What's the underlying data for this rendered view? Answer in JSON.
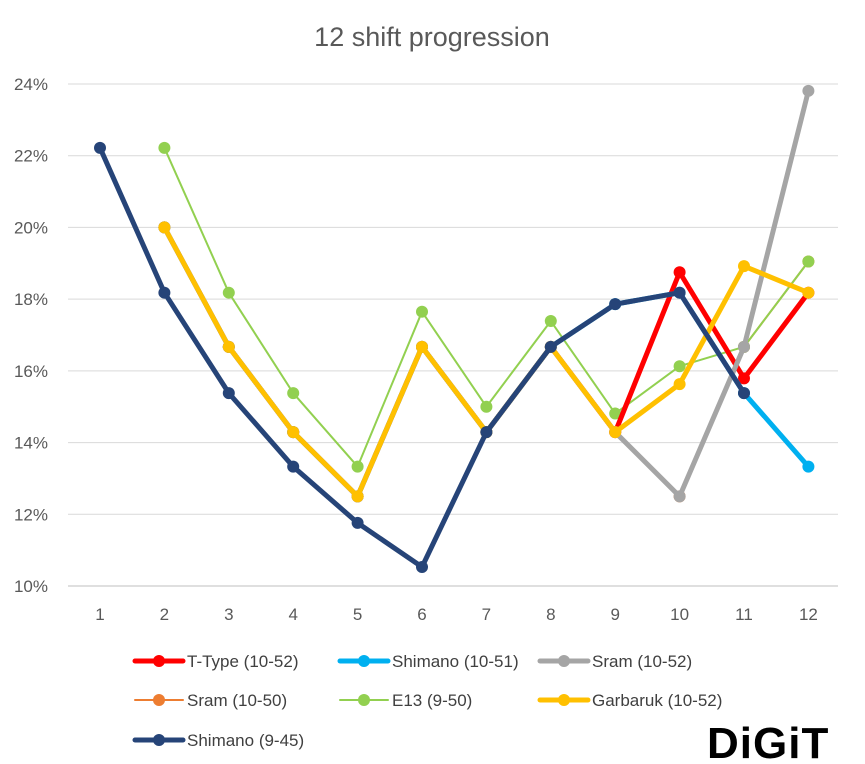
{
  "chart_data": {
    "type": "line",
    "title": "12 shift progression",
    "xlabel": "",
    "ylabel": "",
    "ylim": [
      10,
      24
    ],
    "y_ticks": [
      10,
      12,
      14,
      16,
      18,
      20,
      22,
      24
    ],
    "y_tick_labels": [
      "10%",
      "12%",
      "14%",
      "16%",
      "18%",
      "20%",
      "22%",
      "24%"
    ],
    "x": [
      1,
      2,
      3,
      4,
      5,
      6,
      7,
      8,
      9,
      10,
      11,
      12
    ],
    "x_tick_labels": [
      "1",
      "2",
      "3",
      "4",
      "5",
      "6",
      "7",
      "8",
      "9",
      "10",
      "11",
      "12"
    ],
    "grid": "horizontal",
    "legend_position": "bottom",
    "series": [
      {
        "name": "T-Type (10-52)",
        "color": "#FF0000",
        "weight": "heavy",
        "values": [
          null,
          20.0,
          16.67,
          14.29,
          12.5,
          16.67,
          14.29,
          16.67,
          14.29,
          18.75,
          15.79,
          18.18
        ]
      },
      {
        "name": "Shimano (10-51)",
        "color": "#00B0F0",
        "weight": "heavy",
        "values": [
          null,
          20.0,
          16.67,
          14.29,
          12.5,
          16.67,
          14.29,
          16.67,
          17.86,
          18.18,
          15.38,
          13.33
        ]
      },
      {
        "name": "Sram (10-52)",
        "color": "#A5A5A5",
        "weight": "heavy",
        "values": [
          null,
          20.0,
          16.67,
          14.29,
          12.5,
          16.67,
          14.29,
          16.67,
          14.29,
          12.5,
          16.67,
          23.81
        ]
      },
      {
        "name": "Sram (10-50)",
        "color": "#ED7D31",
        "weight": "light",
        "values": [
          null,
          20.0,
          16.67,
          14.29,
          12.5,
          16.67,
          14.29,
          16.67,
          14.29,
          12.5,
          16.67,
          19.05
        ]
      },
      {
        "name": "E13 (9-50)",
        "color": "#92D050",
        "weight": "light",
        "values": [
          null,
          22.22,
          18.18,
          15.38,
          13.33,
          17.65,
          15.0,
          17.39,
          14.81,
          16.13,
          16.67,
          19.05
        ]
      },
      {
        "name": "Garbaruk (10-52)",
        "color": "#FFC000",
        "weight": "heavy",
        "values": [
          null,
          20.0,
          16.67,
          14.29,
          12.5,
          16.67,
          14.29,
          16.67,
          14.29,
          15.63,
          18.92,
          18.18
        ]
      },
      {
        "name": "Shimano (9-45)",
        "color": "#264478",
        "weight": "heavy",
        "values": [
          22.22,
          18.18,
          15.38,
          13.33,
          11.76,
          10.53,
          14.29,
          16.67,
          17.86,
          18.18,
          15.38,
          null
        ]
      }
    ]
  },
  "logo": {
    "text": "DiGiT"
  }
}
